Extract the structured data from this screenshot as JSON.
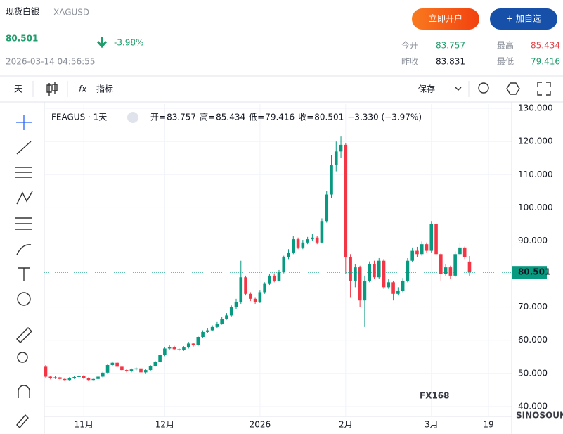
{
  "header": {
    "title": "现货白银",
    "symbol": "XAGUSD",
    "price": "80.501",
    "change": "-3.98%",
    "time": "2026-03-14 04:56:55",
    "buttons": [
      "立即开户",
      "+ 加自选"
    ],
    "stats": [
      {
        "label": "今开",
        "value": "83.757"
      },
      {
        "label": "最高",
        "value": "85.434"
      },
      {
        "label": "昨收",
        "value": "83.831"
      },
      {
        "label": "最低",
        "value": "79.416"
      }
    ]
  },
  "toolbar": {
    "interval": "天",
    "indicators": "指标",
    "save": "保存"
  },
  "chart_data": {
    "type": "candlestick",
    "symbol": "FEAGUS · 1天",
    "legend": [
      {
        "label": "开=",
        "value": "83.757"
      },
      {
        "label": "高=",
        "value": "85.434"
      },
      {
        "label": "低=",
        "value": "79.416"
      },
      {
        "label": "收=",
        "value": "80.501"
      }
    ],
    "legend_change": "−3.330 (−3.97%)",
    "watermark": "FX168",
    "watermark_sub": "SINOSOUND",
    "up_color": "#089981",
    "down_color": "#f23645",
    "categories": [
      null,
      null,
      null,
      null,
      null,
      null,
      null,
      null,
      "11月",
      null,
      null,
      null,
      null,
      null,
      null,
      null,
      null,
      null,
      null,
      null,
      null,
      null,
      null,
      null,
      null,
      "12月",
      null,
      null,
      null,
      null,
      null,
      null,
      null,
      null,
      null,
      null,
      null,
      null,
      null,
      null,
      null,
      null,
      null,
      null,
      null,
      "2026",
      null,
      null,
      null,
      null,
      null,
      null,
      null,
      null,
      null,
      null,
      null,
      null,
      null,
      null,
      null,
      null,
      null,
      "2月",
      null,
      null,
      null,
      null,
      null,
      null,
      null,
      null,
      null,
      null,
      null,
      null,
      null,
      null,
      null,
      null,
      null,
      "3月",
      null,
      null,
      null,
      null,
      null,
      null,
      null,
      null,
      null,
      null,
      null,
      "19",
      null
    ],
    "open": [
      52,
      49,
      48.5,
      48.8,
      48.3,
      48,
      48.6,
      48.9,
      49.2,
      48.5,
      48,
      48.3,
      49,
      50.2,
      52.5,
      53.2,
      52,
      51,
      50.6,
      51.2,
      51.5,
      50.3,
      51,
      52.2,
      53.5,
      55.5,
      57.5,
      58,
      57.3,
      57,
      57.8,
      59,
      58.5,
      61,
      62.5,
      63,
      64,
      65,
      66.5,
      67.5,
      70,
      71.5,
      79,
      74,
      72.5,
      71.5,
      74.5,
      77,
      79.5,
      78,
      80.5,
      85,
      86.5,
      90.5,
      88,
      89.5,
      90.5,
      91,
      89.5,
      96,
      104,
      113,
      117,
      119,
      85,
      78,
      82,
      72,
      78,
      83,
      79,
      84,
      76,
      77.5,
      74,
      75,
      78,
      84,
      87,
      86,
      89,
      87,
      95,
      86,
      80,
      82,
      79.5,
      86,
      88,
      83.757,
      null,
      null,
      null,
      null,
      null
    ],
    "high": [
      52.5,
      49.3,
      49.2,
      49,
      48.6,
      48.9,
      49.2,
      49.5,
      49.5,
      48.8,
      48.6,
      49.3,
      50.5,
      52.8,
      53.6,
      53.4,
      52.3,
      51.3,
      51.5,
      51.8,
      51.8,
      51.3,
      52.5,
      53.8,
      55.8,
      57.9,
      58.5,
      58.3,
      57.6,
      58.2,
      59.5,
      59.3,
      61.4,
      63,
      63.6,
      64.5,
      65.5,
      67,
      68.2,
      70.5,
      72.5,
      84,
      79.5,
      74.5,
      73,
      75.2,
      77.5,
      80,
      80.2,
      81.2,
      85.5,
      87.5,
      91.5,
      91,
      90.3,
      91.2,
      92,
      91.5,
      96.8,
      105,
      116,
      120,
      121.5,
      119.5,
      86,
      83,
      82.5,
      79.5,
      83.8,
      84,
      84.8,
      84.5,
      78.5,
      78,
      76,
      78.8,
      84.8,
      88,
      88.2,
      89.8,
      89.5,
      96,
      95.5,
      86.5,
      83,
      82.5,
      86.8,
      89.5,
      88.3,
      85.434,
      null,
      null,
      null,
      null,
      null
    ],
    "low": [
      48.7,
      48.2,
      48.3,
      48,
      47.7,
      47.8,
      48.3,
      48.6,
      48.2,
      47.7,
      47.8,
      48,
      48.7,
      50,
      52.1,
      51.8,
      50.7,
      50.3,
      50.3,
      50.9,
      50,
      50,
      50.8,
      52,
      53.2,
      55.2,
      57.2,
      57,
      56.7,
      56.8,
      57.5,
      58.1,
      58.2,
      60.6,
      62.2,
      62.7,
      63.7,
      64.7,
      66.2,
      67.2,
      69.5,
      71,
      73.5,
      71.8,
      71,
      71.2,
      74,
      76.7,
      77.5,
      77.8,
      80.2,
      84.5,
      86,
      87.5,
      87.5,
      89,
      90,
      89,
      89.2,
      95.5,
      103,
      111,
      115,
      80,
      73,
      76,
      70,
      64,
      77.5,
      78.5,
      78.5,
      75.5,
      75.5,
      72,
      73.5,
      74.5,
      77.5,
      83.5,
      85,
      85.5,
      86.5,
      86.5,
      85.5,
      78,
      79.5,
      78.5,
      79,
      85.5,
      84.5,
      79.416,
      null,
      null,
      null,
      null,
      null
    ],
    "close": [
      49,
      48.5,
      48.8,
      48.3,
      48,
      48.6,
      48.9,
      49.2,
      48.5,
      48,
      48.3,
      49,
      50.2,
      52.5,
      53.2,
      52,
      51,
      50.6,
      51.2,
      51.5,
      50.3,
      51,
      52.2,
      53.5,
      55.5,
      57.5,
      58,
      57.3,
      57,
      57.8,
      59,
      58.5,
      61,
      62.5,
      63,
      64,
      65,
      66.5,
      67.5,
      70,
      71.5,
      79,
      74,
      72.5,
      71.5,
      74.5,
      77,
      79.5,
      78,
      80.5,
      85,
      86.5,
      90.5,
      88,
      89.5,
      90.5,
      91,
      89.5,
      96,
      104,
      113,
      117,
      119,
      85,
      78,
      82,
      72,
      78,
      83,
      79,
      84,
      76,
      77.5,
      74,
      75,
      78,
      84,
      87,
      86,
      89,
      87,
      95,
      86,
      80,
      82,
      79.5,
      86,
      88,
      85,
      80.501,
      null,
      null,
      null,
      null,
      null
    ],
    "ylim": [
      37,
      131.3
    ],
    "yticks": [
      {
        "value": 40,
        "label": "40.000"
      },
      {
        "value": 50,
        "label": "50.000"
      },
      {
        "value": 60,
        "label": "60.000"
      },
      {
        "value": 70,
        "label": "70.000"
      },
      {
        "value": 80,
        "label": "80.000"
      },
      {
        "value": 90,
        "label": "90.000"
      },
      {
        "value": 100,
        "label": "100.000"
      },
      {
        "value": 110,
        "label": "110.000"
      },
      {
        "value": 120,
        "label": "120.000"
      },
      {
        "value": 130,
        "label": "130.000"
      }
    ],
    "grid": true
  }
}
